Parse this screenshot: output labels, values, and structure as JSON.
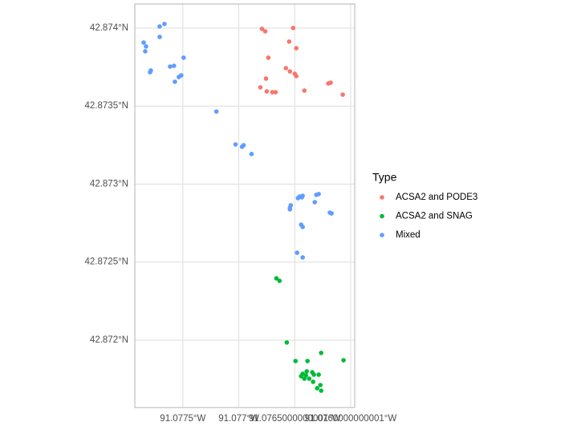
{
  "chart_data": {
    "type": "scatter",
    "legend_title": "Type",
    "grid": true,
    "legend_position": "right",
    "xlim": [
      -91.077929,
      -91.075964
    ],
    "ylim": [
      42.871568,
      42.874154
    ],
    "xticks": [
      {
        "value": -91.0775,
        "label": "91.0775°W"
      },
      {
        "value": -91.077,
        "label": "91.077°W"
      },
      {
        "value": -91.0765,
        "label": "91.0765000000001°W"
      },
      {
        "value": -91.076,
        "label": "91.0760000000001°W"
      }
    ],
    "yticks": [
      {
        "value": 42.872,
        "label": "42.872°N"
      },
      {
        "value": 42.8725,
        "label": "42.8725°N"
      },
      {
        "value": 42.873,
        "label": "42.873°N"
      },
      {
        "value": 42.8735,
        "label": "42.8735°N"
      },
      {
        "value": 42.874,
        "label": "42.874°N"
      }
    ],
    "series": [
      {
        "name": "ACSA2 and PODE3",
        "color": "#F8766D",
        "x": [
          -91.076793,
          -91.076764,
          -91.076514,
          -91.07655,
          -91.076486,
          -91.076736,
          -91.076579,
          -91.076543,
          -91.0765,
          -91.076486,
          -91.076757,
          -91.076807,
          -91.07675,
          -91.0767,
          -91.076671,
          -91.076414,
          -91.0762,
          -91.076179,
          -91.076071
        ],
        "values": [
          42.873995,
          42.873979,
          42.874,
          42.873913,
          42.873871,
          42.87381,
          42.873743,
          42.873722,
          42.873707,
          42.873692,
          42.873676,
          42.87362,
          42.873594,
          42.873589,
          42.873589,
          42.873599,
          42.873645,
          42.87365,
          42.873573
        ]
      },
      {
        "name": "ACSA2 and SNAG",
        "color": "#00BA38",
        "x": [
          -91.076664,
          -91.076636,
          -91.076571,
          -91.076493,
          -91.076386,
          -91.076264,
          -91.076064,
          -91.076429,
          -91.076443,
          -91.0764,
          -91.076393,
          -91.076343,
          -91.076329,
          -91.076286,
          -91.076371,
          -91.076336,
          -91.0763,
          -91.076271,
          -91.076264,
          -91.076414
        ],
        "values": [
          42.872396,
          42.87238,
          42.871985,
          42.871866,
          42.871866,
          42.871918,
          42.871871,
          42.871784,
          42.871769,
          42.871774,
          42.8718,
          42.871794,
          42.871779,
          42.871779,
          42.871753,
          42.871733,
          42.871692,
          42.871712,
          42.871676,
          42.871753
        ]
      },
      {
        "name": "Mixed",
        "color": "#619CFF",
        "x": [
          -91.077664,
          -91.077707,
          -91.077707,
          -91.07785,
          -91.077829,
          -91.077836,
          -91.077786,
          -91.077793,
          -91.077614,
          -91.077579,
          -91.077493,
          -91.077514,
          -91.077536,
          -91.077571,
          -91.0772,
          -91.077029,
          -91.076971,
          -91.076957,
          -91.076886,
          -91.076457,
          -91.076429,
          -91.076436,
          -91.076471,
          -91.076536,
          -91.076543,
          -91.076543,
          -91.076286,
          -91.076307,
          -91.076321,
          -91.076186,
          -91.076171,
          -91.076443,
          -91.076429,
          -91.076479,
          -91.076429
        ],
        "values": [
          42.874026,
          42.87401,
          42.873943,
          42.873907,
          42.873882,
          42.873851,
          42.873728,
          42.873717,
          42.873753,
          42.873758,
          42.87381,
          42.873697,
          42.873686,
          42.873656,
          42.873465,
          42.873254,
          42.873239,
          42.873249,
          42.873193,
          42.87292,
          42.872925,
          42.872915,
          42.87291,
          42.872864,
          42.872848,
          42.872838,
          42.872936,
          42.872931,
          42.872884,
          42.872817,
          42.872812,
          42.87274,
          42.872725,
          42.87256,
          42.87253
        ]
      }
    ]
  }
}
